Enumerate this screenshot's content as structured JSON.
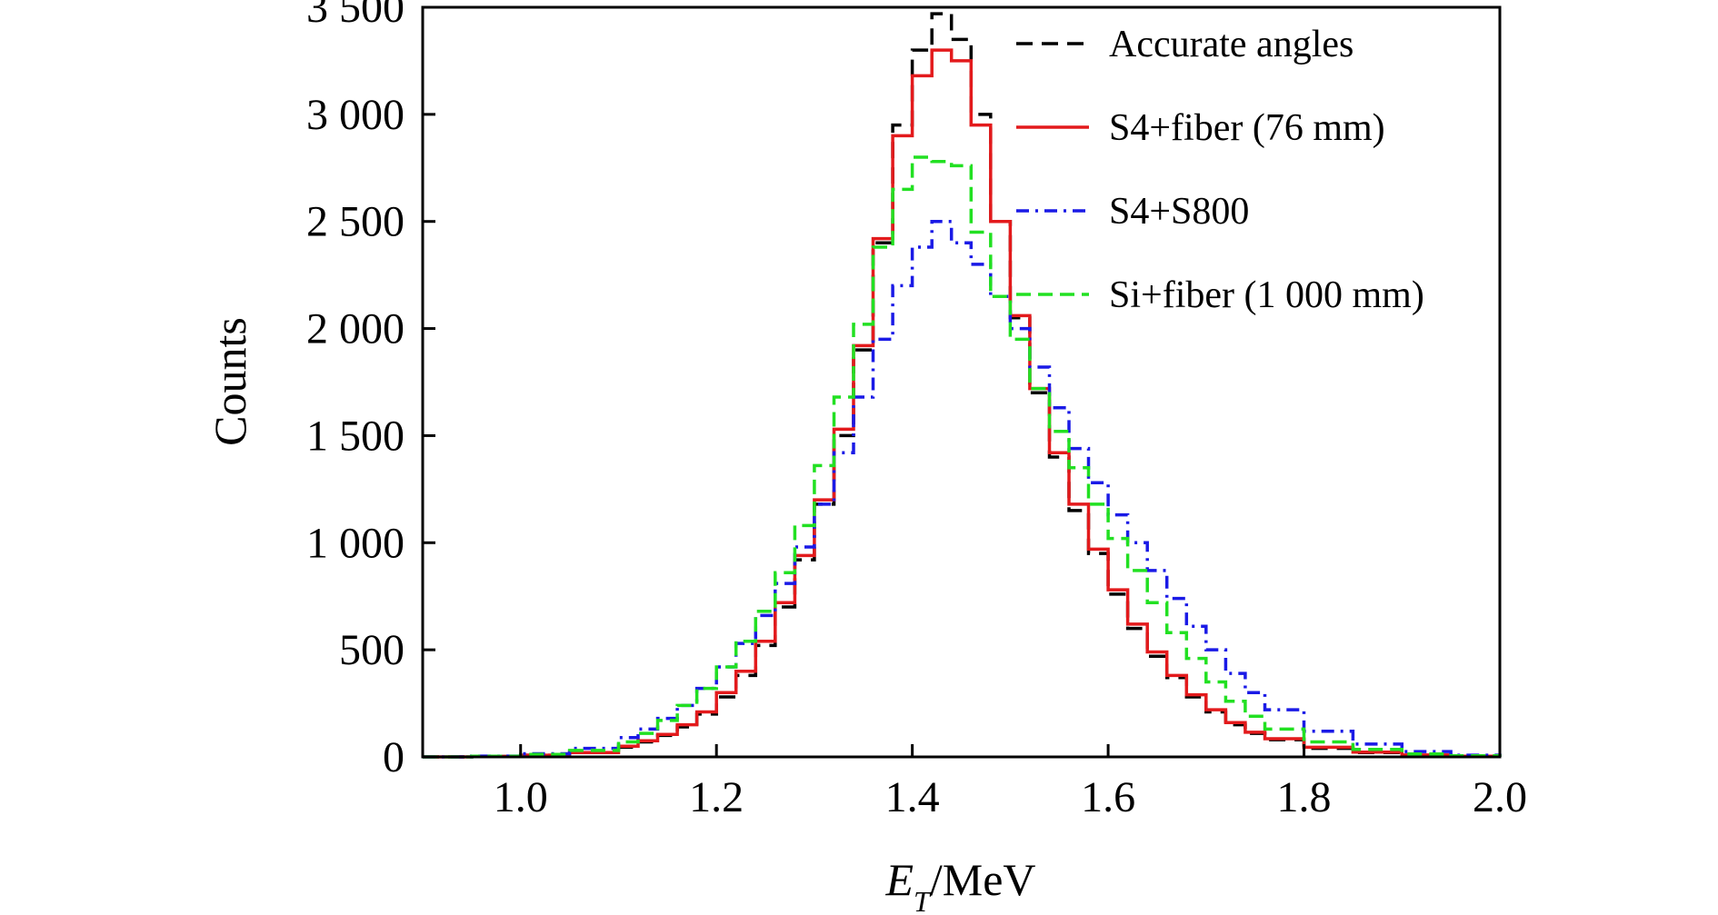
{
  "chart_data": {
    "type": "line",
    "step": true,
    "xlabel_var": "E",
    "xlabel_sub": "T",
    "xlabel_unit": "/MeV",
    "ylabel": "Counts",
    "xlim": [
      0.9,
      2.0
    ],
    "ylim": [
      0,
      3500
    ],
    "x_ticks": [
      1.0,
      1.2,
      1.4,
      1.6,
      1.8,
      2.0
    ],
    "x_tick_labels": [
      "1.0",
      "1.2",
      "1.4",
      "1.6",
      "1.8",
      "2.0"
    ],
    "y_ticks": [
      0,
      500,
      1000,
      1500,
      2000,
      2500,
      3000,
      3500
    ],
    "y_tick_labels": [
      "0",
      "500",
      "1 000",
      "1 500",
      "2 000",
      "2 500",
      "3 000",
      "3 500"
    ],
    "grid": false,
    "legend_position": "top-right",
    "x": [
      0.9,
      0.95,
      1.0,
      1.05,
      1.1,
      1.12,
      1.14,
      1.16,
      1.18,
      1.2,
      1.22,
      1.24,
      1.26,
      1.28,
      1.3,
      1.32,
      1.34,
      1.36,
      1.38,
      1.4,
      1.42,
      1.44,
      1.46,
      1.48,
      1.5,
      1.52,
      1.54,
      1.56,
      1.58,
      1.6,
      1.62,
      1.64,
      1.66,
      1.68,
      1.7,
      1.72,
      1.74,
      1.76,
      1.8,
      1.85,
      1.9,
      1.95,
      2.0
    ],
    "series": [
      {
        "name": "Accurate angles",
        "color": "#000000",
        "dash": "18,10",
        "values": [
          0,
          2,
          8,
          20,
          45,
          70,
          100,
          140,
          200,
          280,
          380,
          520,
          700,
          920,
          1180,
          1500,
          1900,
          2400,
          2950,
          3300,
          3470,
          3350,
          3000,
          2500,
          2050,
          1700,
          1400,
          1150,
          950,
          760,
          600,
          470,
          370,
          280,
          210,
          150,
          110,
          80,
          40,
          20,
          8,
          3,
          0
        ]
      },
      {
        "name": "S4+fiber (76 mm)",
        "color": "#e31a1c",
        "dash": "",
        "values": [
          0,
          2,
          8,
          20,
          50,
          75,
          105,
          150,
          210,
          300,
          400,
          540,
          720,
          940,
          1200,
          1530,
          1920,
          2420,
          2900,
          3180,
          3300,
          3250,
          2950,
          2500,
          2060,
          1720,
          1420,
          1180,
          970,
          780,
          620,
          490,
          380,
          290,
          220,
          160,
          115,
          85,
          45,
          22,
          9,
          3,
          0
        ]
      },
      {
        "name": "S4+S800",
        "color": "#1a1ae6",
        "dash": "14,7,3,7",
        "values": [
          0,
          4,
          15,
          40,
          90,
          130,
          180,
          240,
          320,
          420,
          530,
          660,
          810,
          980,
          1180,
          1420,
          1680,
          1950,
          2200,
          2380,
          2500,
          2400,
          2300,
          2150,
          2000,
          1820,
          1630,
          1440,
          1280,
          1130,
          1000,
          870,
          740,
          610,
          500,
          390,
          300,
          220,
          120,
          60,
          25,
          8,
          0
        ]
      },
      {
        "name": "Si+fiber (1 000 mm)",
        "color": "#22e022",
        "dash": "16,8",
        "values": [
          0,
          3,
          12,
          30,
          70,
          110,
          170,
          240,
          320,
          420,
          540,
          680,
          860,
          1080,
          1360,
          1680,
          2020,
          2380,
          2650,
          2800,
          2780,
          2760,
          2450,
          2150,
          1950,
          1720,
          1520,
          1350,
          1180,
          1020,
          870,
          720,
          580,
          460,
          350,
          260,
          190,
          130,
          70,
          35,
          14,
          5,
          0
        ]
      }
    ]
  }
}
